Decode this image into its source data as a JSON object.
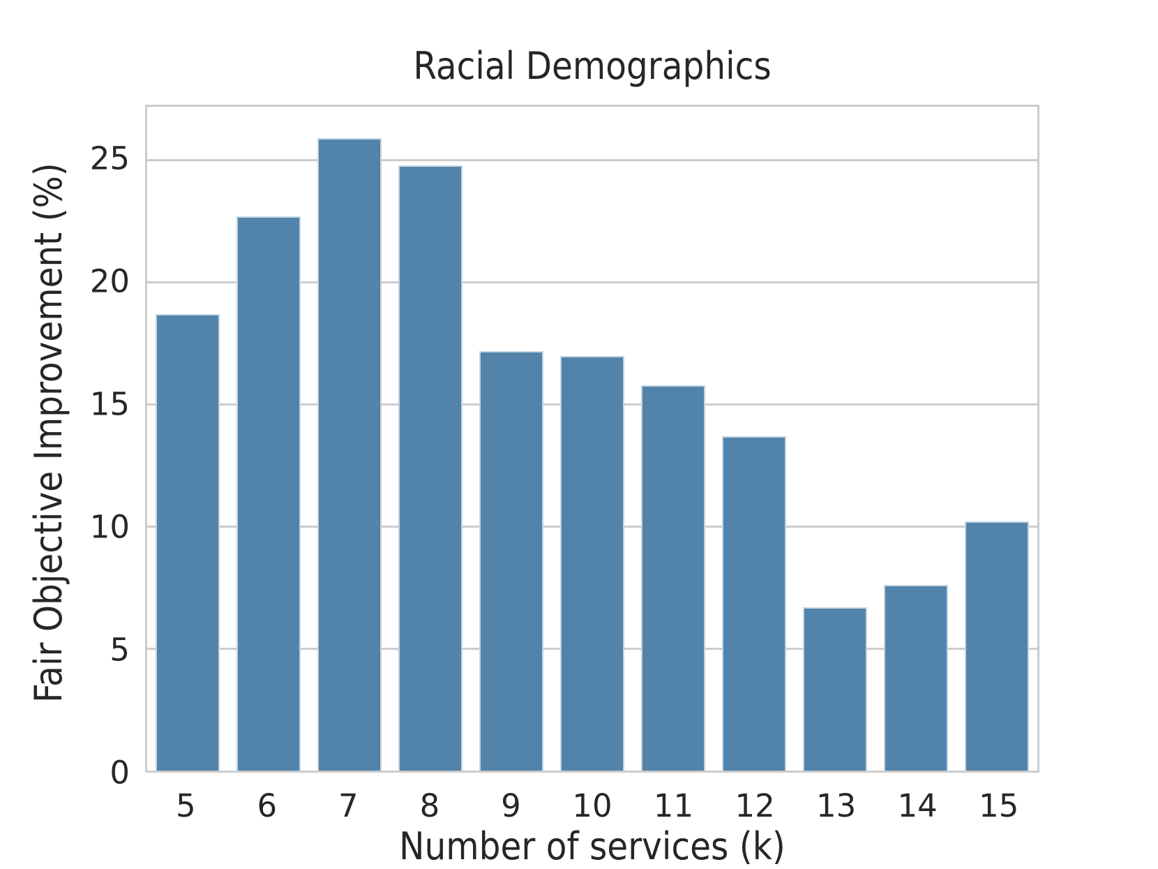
{
  "chart_data": {
    "type": "bar",
    "title": "Racial Demographics",
    "xlabel": "Number of services (k)",
    "ylabel": "Fair Objective Improvement (%)",
    "categories": [
      "5",
      "6",
      "7",
      "8",
      "9",
      "10",
      "11",
      "12",
      "13",
      "14",
      "15"
    ],
    "values": [
      18.7,
      22.7,
      25.9,
      24.8,
      17.2,
      17.0,
      15.8,
      13.7,
      6.7,
      7.6,
      10.2
    ],
    "ylim": [
      0,
      27.2
    ],
    "yticks": [
      0,
      5,
      10,
      15,
      20,
      25
    ],
    "grid": "horizontal",
    "legend_position": "none",
    "bar_color": "#5283aa",
    "bar_edge_color": "rgba(255,255,255,0.65)",
    "grid_color": "#cccccc",
    "text_color": "#262626"
  }
}
